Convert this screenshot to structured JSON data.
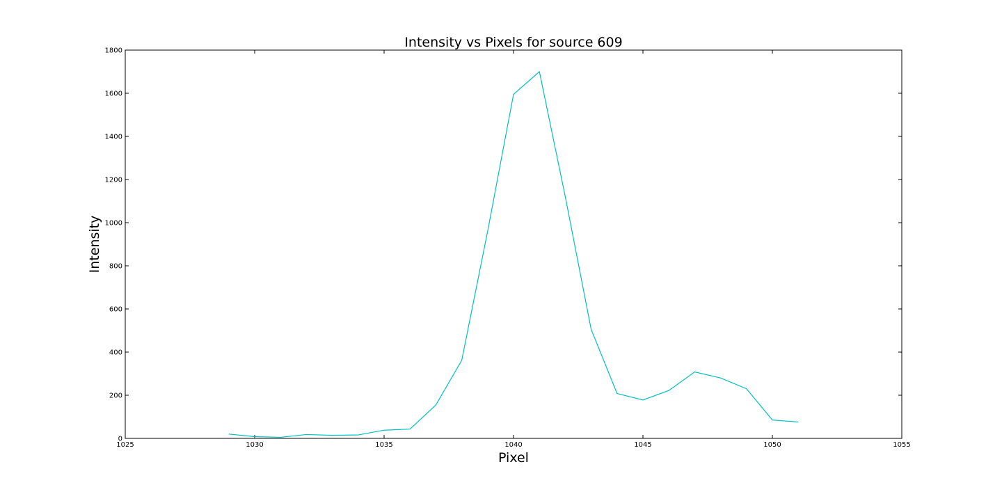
{
  "chart_data": {
    "type": "line",
    "title": "Intensity vs Pixels for source 609",
    "xlabel": "Pixel",
    "ylabel": "Intensity",
    "xlim": [
      1025,
      1055
    ],
    "ylim": [
      0,
      1800
    ],
    "xticks": [
      1025,
      1030,
      1035,
      1040,
      1045,
      1050,
      1055
    ],
    "yticks": [
      0,
      200,
      400,
      600,
      800,
      1000,
      1200,
      1400,
      1600,
      1800
    ],
    "grid": false,
    "series": [
      {
        "color": "#00bfbf",
        "x": [
          1029,
          1030,
          1031,
          1032,
          1033,
          1034,
          1035,
          1036,
          1037,
          1038,
          1039,
          1040,
          1041,
          1042,
          1043,
          1044,
          1045,
          1046,
          1047,
          1048,
          1049,
          1050,
          1051
        ],
        "y": [
          20,
          8,
          5,
          18,
          14,
          16,
          38,
          43,
          155,
          362,
          960,
          1595,
          1700,
          1120,
          505,
          208,
          178,
          222,
          308,
          280,
          230,
          85,
          76
        ]
      }
    ]
  }
}
